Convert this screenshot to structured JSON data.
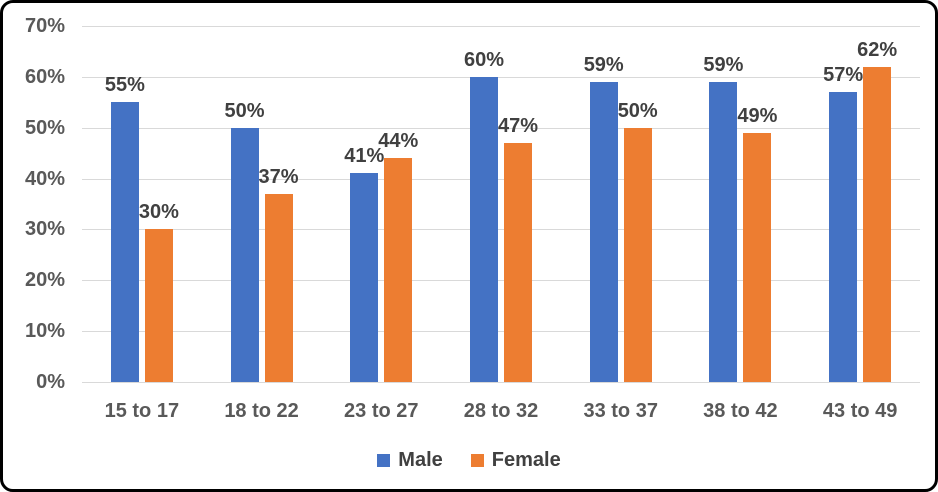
{
  "chart_data": {
    "type": "bar",
    "title": "",
    "xlabel": "",
    "ylabel": "",
    "categories": [
      "15 to 17",
      "18 to 22",
      "23 to 27",
      "28 to 32",
      "33 to 37",
      "38 to 42",
      "43 to 49"
    ],
    "series": [
      {
        "name": "Male",
        "color": "#4472C4",
        "values": [
          55,
          50,
          41,
          60,
          59,
          59,
          57
        ],
        "data_labels": [
          "55%",
          "50%",
          "41%",
          "60%",
          "59%",
          "59%",
          "57%"
        ]
      },
      {
        "name": "Female",
        "color": "#ED7D31",
        "values": [
          30,
          37,
          44,
          47,
          50,
          49,
          62
        ],
        "data_labels": [
          "30%",
          "37%",
          "44%",
          "47%",
          "50%",
          "49%",
          "62%"
        ]
      }
    ],
    "y_axis": {
      "min": 0,
      "max": 70,
      "tick_step": 10,
      "tick_labels": [
        "0%",
        "10%",
        "20%",
        "30%",
        "40%",
        "50%",
        "60%",
        "70%"
      ]
    },
    "grid": true,
    "data_labels_shown": true,
    "legend_position": "bottom-center",
    "colors": {
      "gridline": "#D9D9D9",
      "axis_text": "#595959",
      "data_label_text": "#404040",
      "legend_text": "#404040",
      "figure_border": "#000000",
      "background": "#FFFFFF"
    }
  }
}
